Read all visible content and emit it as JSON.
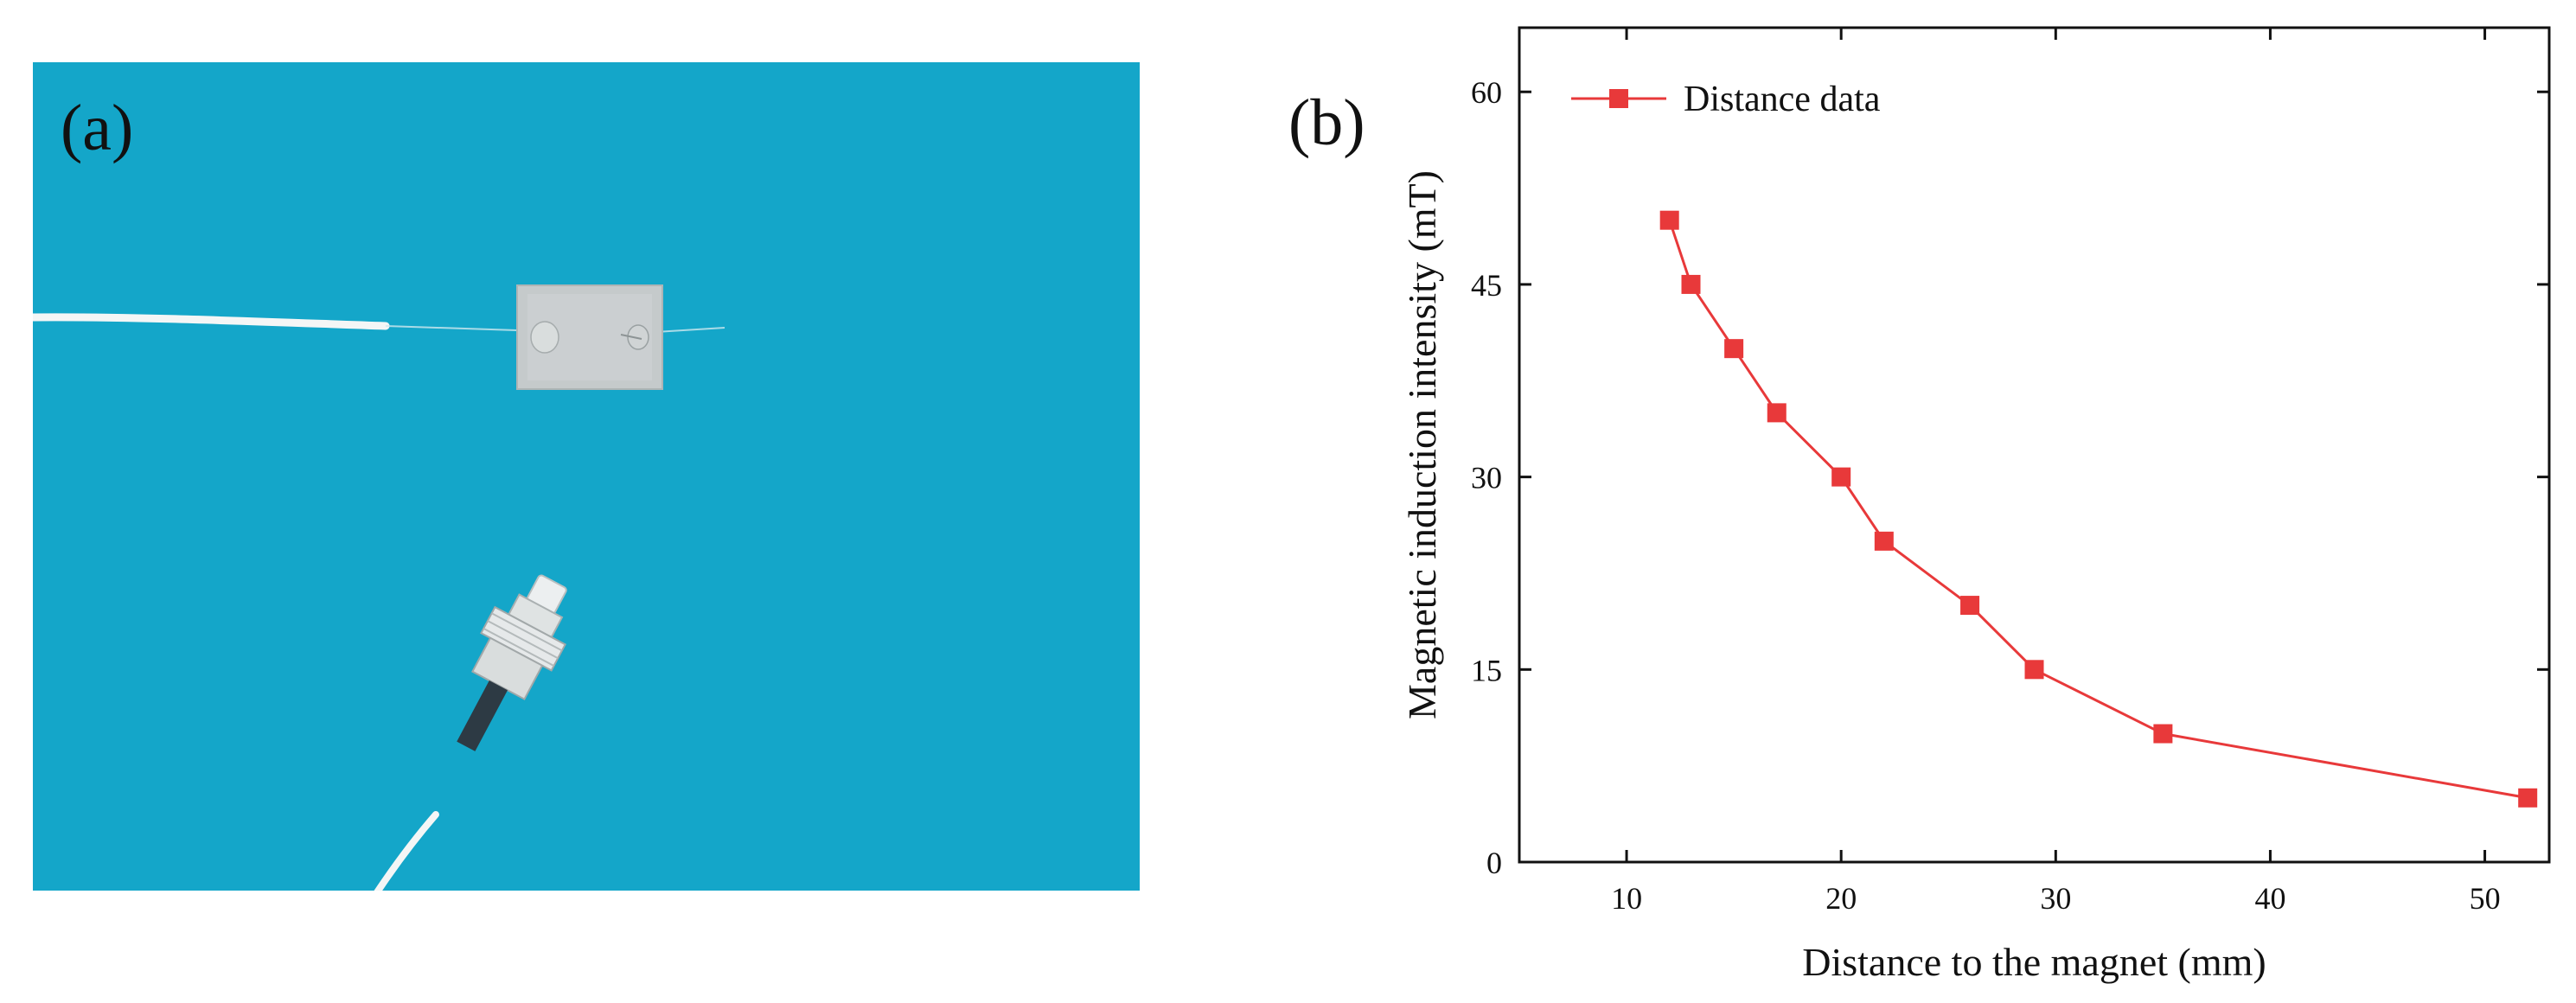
{
  "panel_a": {
    "label": "(a)",
    "colors": {
      "background": "#14a6c9",
      "fiber": "#f4f6f6",
      "plate": "#c5cacb",
      "connector": "#dfe3e3"
    }
  },
  "panel_b": {
    "label": "(b)"
  },
  "chart_data": {
    "type": "line",
    "title": "",
    "xlabel": "Distance to the magnet (mm)",
    "ylabel": "Magnetic induction intensity (mT)",
    "xlim": [
      5,
      53
    ],
    "ylim": [
      0,
      65
    ],
    "xticks": [
      10,
      20,
      30,
      40,
      50
    ],
    "yticks": [
      0,
      15,
      30,
      45,
      60
    ],
    "grid": false,
    "legend": {
      "position": "top-left",
      "entries": [
        "Distance data"
      ]
    },
    "series": [
      {
        "name": "Distance data",
        "color": "#e8393a",
        "marker": "square",
        "x": [
          12,
          13,
          15,
          17,
          20,
          22,
          26,
          29,
          35,
          52
        ],
        "y": [
          50,
          45,
          40,
          35,
          30,
          25,
          20,
          15,
          10,
          5
        ]
      }
    ]
  }
}
